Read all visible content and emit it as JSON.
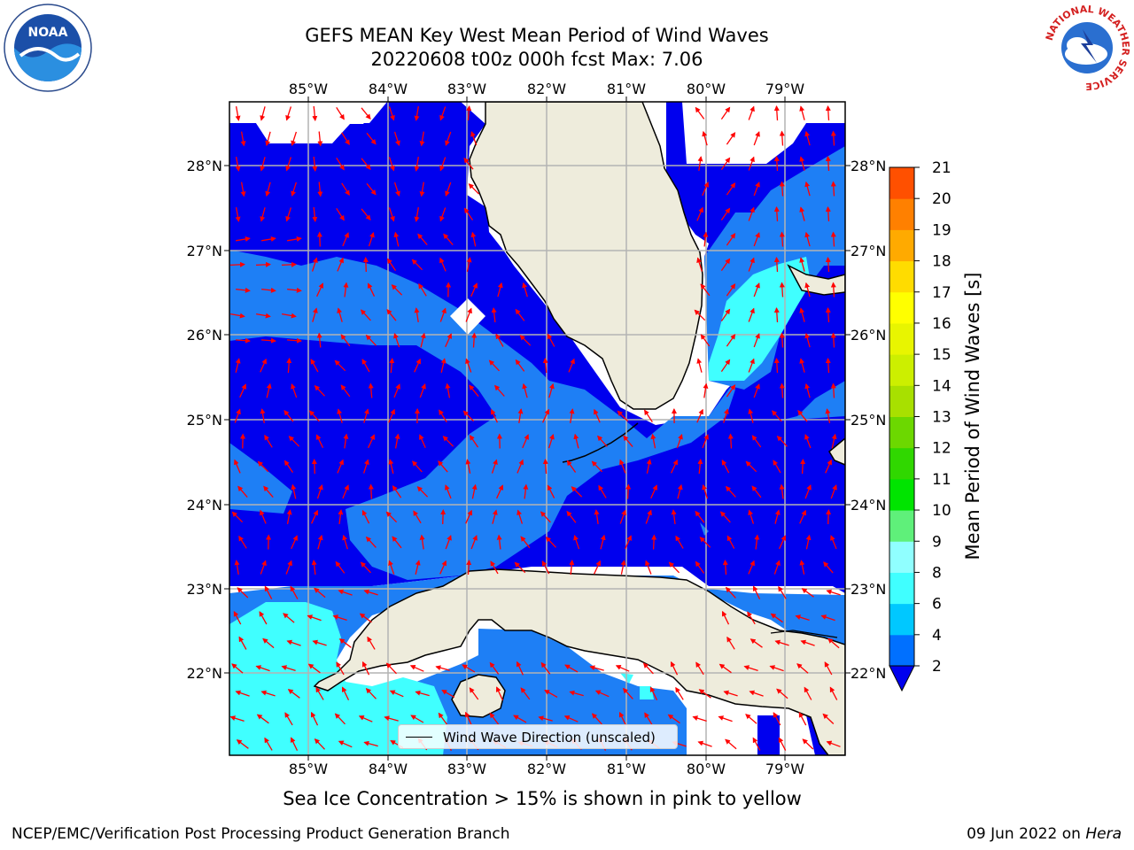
{
  "title": {
    "line1": "GEFS MEAN Key West Mean Period of Wind Waves",
    "line2": "20220608 t00z 000h fcst   Max: 7.06"
  },
  "map": {
    "lon_labels": [
      "85°W",
      "84°W",
      "83°W",
      "82°W",
      "81°W",
      "80°W",
      "79°W"
    ],
    "lat_labels": [
      "28°N",
      "27°N",
      "26°N",
      "25°N",
      "24°N",
      "23°N",
      "22°N"
    ],
    "colors": {
      "land": "#eeecdc",
      "band_2_4": "#0000ee",
      "band_4_6": "#1e7ff5",
      "band_6_8": "#40ffff",
      "arrow": "#ff0000",
      "grid": "#b3b3b3"
    }
  },
  "legend": {
    "label": "Wind Wave Direction (unscaled)",
    "icon": "black-line-icon"
  },
  "colorbar": {
    "label": "Mean Period of Wind Waves [s]",
    "ticks": [
      "2",
      "4",
      "6",
      "8",
      "9",
      "10",
      "11",
      "12",
      "13",
      "14",
      "15",
      "16",
      "17",
      "18",
      "19",
      "20",
      "21"
    ],
    "colors": [
      "#0070ff",
      "#00c8ff",
      "#40ffff",
      "#90ffff",
      "#5ff07a",
      "#00e400",
      "#30d700",
      "#6cd800",
      "#a8e000",
      "#ccef00",
      "#e8f500",
      "#ffff00",
      "#ffdc00",
      "#ffaa00",
      "#ff8000",
      "#ff5000",
      "#ff1e00",
      "#ff0000"
    ]
  },
  "caption": "Sea Ice Concentration > 15% is shown in pink to yellow",
  "footer": {
    "left": "NCEP/EMC/Verification Post Processing Product Generation Branch",
    "date": "09 Jun 2022 on ",
    "host": "Hera"
  },
  "logos": {
    "noaa": "NOAA",
    "nws_ring": "NATIONAL WEATHER SERVICE"
  }
}
